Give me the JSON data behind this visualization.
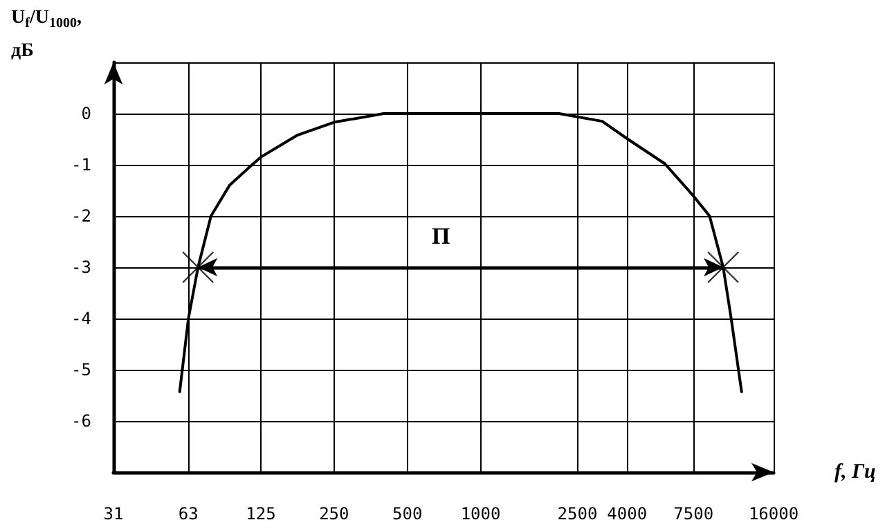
{
  "chart_data": {
    "type": "line",
    "xlabel": "f, Гц",
    "ylabel": "U$_{f}$/U$_{1000}$,\nдБ",
    "log": "x",
    "xlim": [
      31,
      16000
    ],
    "ylim": [
      -7,
      1
    ],
    "xticks": [
      31,
      63,
      125,
      250,
      500,
      1000,
      2500,
      4000,
      7500,
      16000
    ],
    "yticks": [
      {
        "value": -7,
        "label": null
      },
      -6,
      -5,
      -4,
      -3,
      -2,
      -1,
      0,
      {
        "value": 1,
        "label": null
      }
    ],
    "grid": true,
    "series": [
      {
        "type": "line",
        "color": "#000000",
        "marker": "none",
        "x": [
          58,
          63,
          69,
          78,
          93,
          115,
          125,
          177,
          250,
          400,
          710,
          1000,
          2100,
          3160,
          4000,
          5720,
          7500,
          8730,
          9930,
          10710,
          11820
        ],
        "values": [
          -5.43,
          -4,
          -3,
          -2,
          -1.4,
          -1,
          -0.85,
          -0.42,
          -0.17,
          0,
          0,
          0,
          0,
          -0.15,
          -0.49,
          -0.98,
          -1.61,
          -2,
          -3,
          -4,
          -5.43
        ]
      },
      {
        "type": "scatter",
        "color": "#000000",
        "marker": "cross",
        "x": [
          69,
          9930
        ],
        "values": [
          -3,
          -3
        ]
      }
    ],
    "annotations": [
      "П"
    ]
  }
}
